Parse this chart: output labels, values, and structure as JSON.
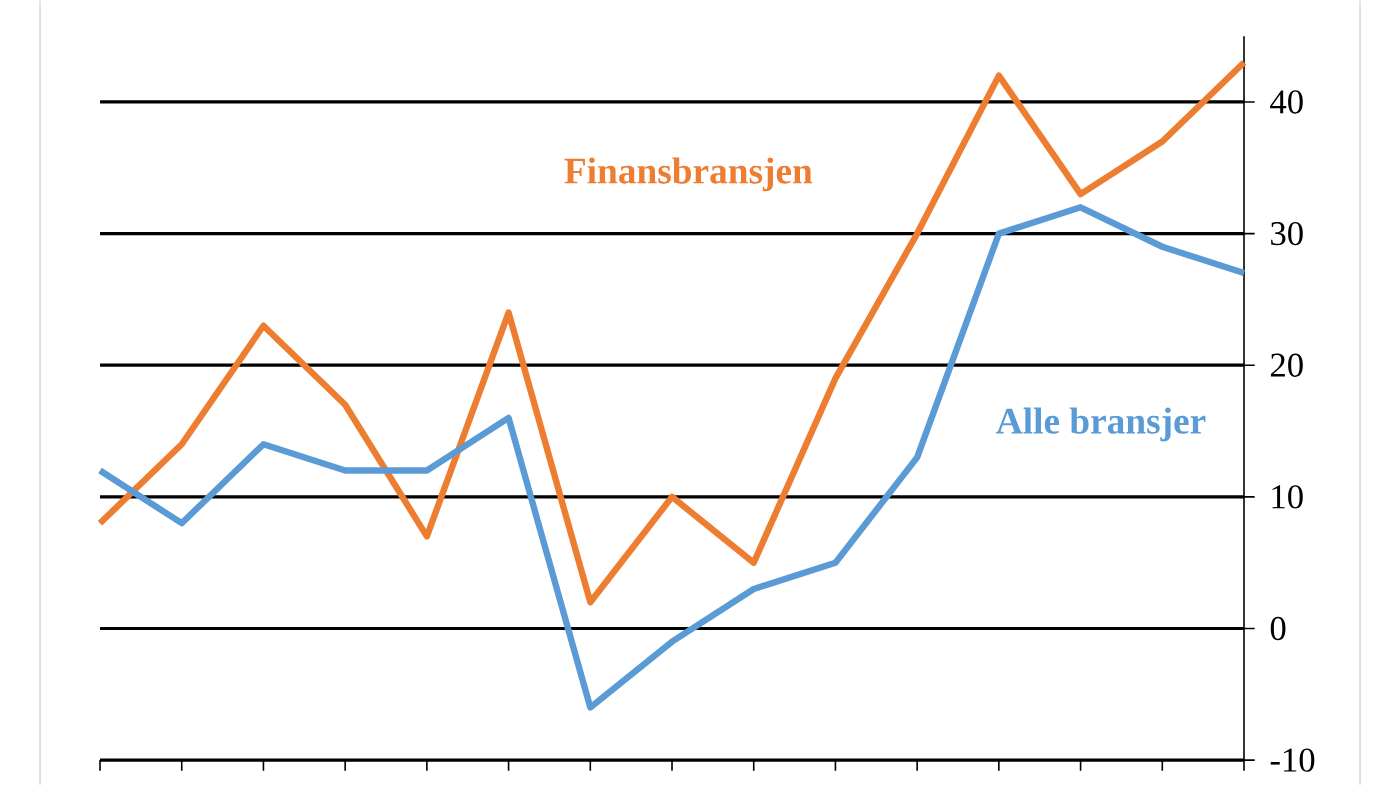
{
  "chart_data": {
    "type": "line",
    "categories": [
      null,
      null,
      null,
      null,
      null,
      null,
      null,
      null,
      null,
      null,
      null,
      null,
      null,
      null,
      null
    ],
    "series": [
      {
        "name": "Finansbransjen",
        "color": "#ed7d31",
        "values": [
          8,
          14,
          23,
          17,
          7,
          24,
          2,
          10,
          5,
          19,
          30,
          42,
          33,
          37,
          43
        ]
      },
      {
        "name": "Alle bransjer",
        "color": "#5b9bd5",
        "values": [
          12,
          8,
          14,
          12,
          12,
          16,
          -6,
          -1,
          3,
          5,
          13,
          30,
          32,
          29,
          27
        ]
      }
    ],
    "ylim": [
      -10,
      45
    ],
    "yticks": [
      -10,
      0,
      10,
      20,
      30,
      40
    ],
    "grid": "y",
    "legend": false,
    "marker": "none",
    "line_style": "solid"
  }
}
